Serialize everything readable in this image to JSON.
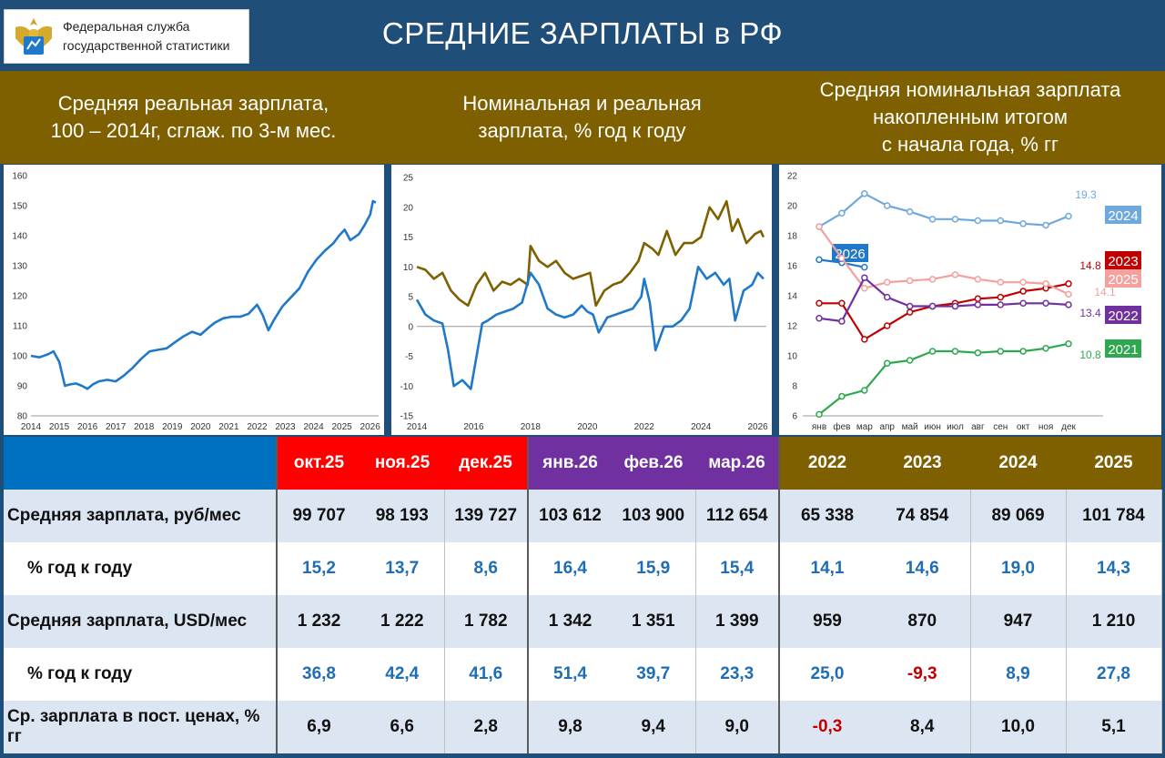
{
  "header": {
    "logo_text_line1": "Федеральная служба",
    "logo_text_line2": "государственной статистики",
    "title": "СРЕДНИЕ ЗАРПЛАТЫ в РФ"
  },
  "panels": {
    "p1_title_l1": "Средняя реальная зарплата,",
    "p1_title_l2": "100 – 2014г, сглаж. по 3-м мес.",
    "p2_title_l1": "Номинальная и реальная",
    "p2_title_l2": "зарплата, % год к году",
    "p3_title_l1": "Средняя номинальная зарплата",
    "p3_title_l2": "накопленным итогом",
    "p3_title_l3": "с начала года, % гг"
  },
  "colors": {
    "header_bg": "#1f4e79",
    "band_bg": "#7f6000",
    "month_red": "#ff0000",
    "month_purple": "#7030a0",
    "year_olive": "#7f6000",
    "blue_line": "#1f78c8",
    "olive_line": "#7f6000"
  },
  "chart_data": [
    {
      "type": "line",
      "title": "Средняя реальная зарплата, 100 – 2014г, сглаж. по 3-м мес.",
      "ylim": [
        80,
        160
      ],
      "yticks": [
        80,
        90,
        100,
        110,
        120,
        130,
        140,
        150,
        160
      ],
      "xlim": [
        2014,
        2026.3
      ],
      "xticks": [
        2014,
        2015,
        2016,
        2017,
        2018,
        2019,
        2020,
        2021,
        2022,
        2023,
        2024,
        2025,
        2026
      ],
      "series": [
        {
          "color": "#1f78c8",
          "x": [
            2014.0,
            2014.3,
            2014.6,
            2014.8,
            2015.0,
            2015.2,
            2015.4,
            2015.6,
            2015.8,
            2016.0,
            2016.2,
            2016.4,
            2016.7,
            2017.0,
            2017.3,
            2017.6,
            2017.9,
            2018.2,
            2018.5,
            2018.8,
            2019.1,
            2019.4,
            2019.7,
            2020.0,
            2020.3,
            2020.5,
            2020.8,
            2021.1,
            2021.4,
            2021.7,
            2022.0,
            2022.2,
            2022.4,
            2022.6,
            2022.9,
            2023.2,
            2023.5,
            2023.8,
            2024.1,
            2024.4,
            2024.7,
            2024.9,
            2025.1,
            2025.3,
            2025.6,
            2025.8,
            2026.0,
            2026.1,
            2026.2
          ],
          "y": [
            100,
            99.5,
            100.5,
            101.5,
            98,
            90,
            90.5,
            90.8,
            90,
            89,
            90.5,
            91.5,
            92,
            91.5,
            93.5,
            96,
            99,
            101.5,
            102,
            102.5,
            104.5,
            106.5,
            108,
            107,
            109.5,
            111,
            112.5,
            113,
            113,
            114,
            117,
            113.5,
            108.5,
            112,
            116.5,
            119.5,
            122.5,
            128,
            132,
            135,
            137.5,
            140,
            142,
            138.5,
            140.5,
            143.5,
            147,
            151.5,
            151
          ]
        }
      ]
    },
    {
      "type": "line",
      "title": "Номинальная и реальная зарплата, % год к году",
      "ylim": [
        -15,
        25
      ],
      "yticks": [
        -15,
        -10,
        -5,
        0,
        5,
        10,
        15,
        20,
        25
      ],
      "xlim": [
        2014,
        2026.3
      ],
      "xticks": [
        2014,
        2016,
        2018,
        2020,
        2022,
        2024,
        2026
      ],
      "series": [
        {
          "color": "#7f6000",
          "x": [
            2014.0,
            2014.3,
            2014.6,
            2014.9,
            2015.2,
            2015.5,
            2015.8,
            2016.1,
            2016.4,
            2016.7,
            2017.0,
            2017.3,
            2017.6,
            2017.9,
            2018.0,
            2018.3,
            2018.6,
            2018.9,
            2019.2,
            2019.5,
            2019.8,
            2020.1,
            2020.3,
            2020.6,
            2020.9,
            2021.2,
            2021.5,
            2021.8,
            2022.0,
            2022.3,
            2022.5,
            2022.8,
            2023.1,
            2023.4,
            2023.7,
            2024.0,
            2024.3,
            2024.6,
            2024.9,
            2025.1,
            2025.3,
            2025.6,
            2025.9,
            2026.1,
            2026.2
          ],
          "y": [
            10,
            9.5,
            8,
            9,
            6,
            4.5,
            3.5,
            7,
            9,
            6,
            7.5,
            7,
            8,
            7,
            13.5,
            11,
            10,
            11,
            9,
            8,
            8.5,
            9,
            3.5,
            6,
            7,
            7.5,
            9,
            11,
            14,
            13,
            12,
            16,
            12,
            14,
            14,
            15,
            20,
            18,
            21,
            16,
            18,
            14,
            15.5,
            16,
            15
          ]
        },
        {
          "color": "#1f78c8",
          "x": [
            2014.0,
            2014.3,
            2014.6,
            2014.9,
            2015.1,
            2015.3,
            2015.6,
            2015.9,
            2016.1,
            2016.3,
            2016.5,
            2016.8,
            2017.1,
            2017.4,
            2017.7,
            2018.0,
            2018.3,
            2018.6,
            2018.9,
            2019.2,
            2019.5,
            2019.8,
            2020.0,
            2020.2,
            2020.4,
            2020.7,
            2021.0,
            2021.3,
            2021.6,
            2021.9,
            2022.0,
            2022.2,
            2022.4,
            2022.7,
            2023.0,
            2023.3,
            2023.6,
            2023.9,
            2024.2,
            2024.5,
            2024.8,
            2025.0,
            2025.2,
            2025.5,
            2025.8,
            2026.0,
            2026.2
          ],
          "y": [
            4.5,
            2,
            1,
            0.5,
            -4,
            -10,
            -9,
            -10.5,
            -5,
            0.5,
            1,
            2,
            2.5,
            3,
            4,
            9,
            7,
            3,
            2,
            1.5,
            2,
            3.5,
            2.5,
            2,
            -1,
            1.5,
            2,
            2.5,
            3,
            5,
            8,
            4,
            -4,
            0,
            0,
            1,
            3,
            10,
            8,
            9,
            7,
            8,
            1,
            6,
            7,
            9,
            8
          ]
        }
      ]
    },
    {
      "type": "line",
      "title": "Средняя номинальная зарплата накопленным итогом с начала года, % гг",
      "ylim": [
        6,
        22
      ],
      "yticks": [
        6,
        8,
        10,
        12,
        14,
        16,
        18,
        20,
        22
      ],
      "categories": [
        "янв",
        "фев",
        "мар",
        "апр",
        "май",
        "июн",
        "июл",
        "авг",
        "сен",
        "окт",
        "ноя",
        "дек"
      ],
      "series": [
        {
          "name": "2024",
          "color": "#6fa8dc",
          "values": [
            18.6,
            19.5,
            20.8,
            20.0,
            19.6,
            19.1,
            19.1,
            19.0,
            19.0,
            18.8,
            18.7,
            19.3
          ],
          "end_label": "19.3"
        },
        {
          "name": "2026",
          "color": "#1f78c8",
          "values": [
            16.4,
            16.2,
            15.9,
            null,
            null,
            null,
            null,
            null,
            null,
            null,
            null,
            null
          ],
          "end_label": ""
        },
        {
          "name": "2023",
          "color": "#c00000",
          "values": [
            13.5,
            13.5,
            11.1,
            12.0,
            12.9,
            13.3,
            13.5,
            13.8,
            13.9,
            14.3,
            14.5,
            14.8
          ],
          "end_label": "14.8"
        },
        {
          "name": "2025",
          "color": "#f4a09c",
          "values": [
            18.6,
            16.5,
            14.5,
            14.9,
            15.0,
            15.1,
            15.4,
            15.1,
            14.9,
            14.9,
            14.8,
            14.1
          ],
          "end_label": "14.1"
        },
        {
          "name": "2022",
          "color": "#7030a0",
          "values": [
            12.5,
            12.3,
            15.2,
            13.9,
            13.3,
            13.3,
            13.3,
            13.4,
            13.4,
            13.5,
            13.5,
            13.4
          ],
          "end_label": "13.4"
        },
        {
          "name": "2021",
          "color": "#2ea84f",
          "values": [
            6.1,
            7.3,
            7.7,
            9.5,
            9.7,
            10.3,
            10.3,
            10.2,
            10.3,
            10.3,
            10.5,
            10.8
          ],
          "end_label": "10.8"
        }
      ]
    }
  ],
  "table": {
    "columns": [
      {
        "label": "окт.25",
        "group": "red"
      },
      {
        "label": "ноя.25",
        "group": "red"
      },
      {
        "label": "дек.25",
        "group": "red"
      },
      {
        "label": "янв.26",
        "group": "purple"
      },
      {
        "label": "фев.26",
        "group": "purple"
      },
      {
        "label": "мар.26",
        "group": "purple"
      },
      {
        "label": "2022",
        "group": "olive"
      },
      {
        "label": "2023",
        "group": "olive"
      },
      {
        "label": "2024",
        "group": "olive"
      },
      {
        "label": "2025",
        "group": "olive"
      }
    ],
    "rows": [
      {
        "label": "Средняя зарплата, руб/мес",
        "indent": false,
        "style": "blk",
        "cells": [
          "99 707",
          "98 193",
          "139 727",
          "103 612",
          "103 900",
          "112 654",
          "65 338",
          "74 854",
          "89 069",
          "101 784"
        ]
      },
      {
        "label": "% год к году",
        "indent": true,
        "style": "blu",
        "cells": [
          "15,2",
          "13,7",
          "8,6",
          "16,4",
          "15,9",
          "15,4",
          "14,1",
          "14,6",
          "19,0",
          "14,3"
        ]
      },
      {
        "label": "Средняя зарплата, USD/мес",
        "indent": false,
        "style": "blk",
        "cells": [
          "1 232",
          "1 222",
          "1 782",
          "1 342",
          "1 351",
          "1 399",
          "959",
          "870",
          "947",
          "1 210"
        ]
      },
      {
        "label": "% год к году",
        "indent": true,
        "style": "blu",
        "cells": [
          "36,8",
          "42,4",
          "41,6",
          "51,4",
          "39,7",
          "23,3",
          "25,0",
          "-9,3",
          "8,9",
          "27,8"
        ]
      },
      {
        "label": "Ср. зарплата в пост. ценах, % гг",
        "indent": false,
        "style": "blk",
        "cells": [
          "6,9",
          "6,6",
          "2,8",
          "9,8",
          "9,4",
          "9,0",
          "-0,3",
          "8,4",
          "10,0",
          "5,1"
        ]
      }
    ]
  }
}
